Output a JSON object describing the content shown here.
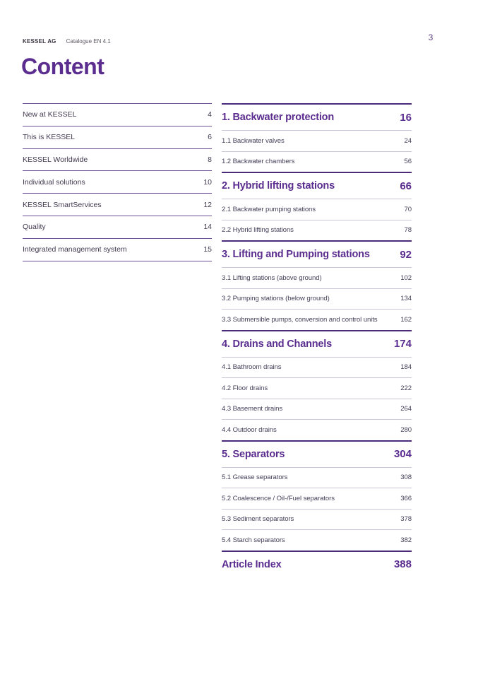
{
  "header": {
    "brand": "KESSEL AG",
    "catalogue": "Catalogue EN 4.1",
    "page_number": "3"
  },
  "title": "Content",
  "colors": {
    "brand_purple": "#5b2d8f",
    "heading_rule": "#4c2a7a",
    "left_rule": "#6f4f96",
    "light_rule": "#ccc5d8",
    "body_text": "#46405a"
  },
  "left_column": {
    "items": [
      {
        "label": "New at KESSEL",
        "page": "4"
      },
      {
        "label": "This is KESSEL",
        "page": "6"
      },
      {
        "label": "KESSEL Worldwide",
        "page": "8"
      },
      {
        "label": "Individual solutions",
        "page": "10"
      },
      {
        "label": "KESSEL SmartServices",
        "page": "12"
      },
      {
        "label": "Quality",
        "page": "14"
      },
      {
        "label": "Integrated management system",
        "page": "15"
      }
    ]
  },
  "right_column": {
    "sections": [
      {
        "title": "1. Backwater protection",
        "page": "16",
        "items": [
          {
            "label": "1.1 Backwater valves",
            "page": "24"
          },
          {
            "label": "1.2 Backwater chambers",
            "page": "56"
          }
        ]
      },
      {
        "title": "2. Hybrid lifting stations",
        "page": "66",
        "items": [
          {
            "label": "2.1 Backwater pumping stations",
            "page": "70"
          },
          {
            "label": "2.2 Hybrid lifting stations",
            "page": "78"
          }
        ]
      },
      {
        "title": "3. Lifting and Pumping stations",
        "page": "92",
        "items": [
          {
            "label": "3.1 Lifting stations (above ground)",
            "page": "102"
          },
          {
            "label": "3.2 Pumping stations (below ground)",
            "page": "134"
          },
          {
            "label": "3.3 Submersible pumps, conversion and control units",
            "page": "162"
          }
        ]
      },
      {
        "title": "4. Drains and Channels",
        "page": "174",
        "items": [
          {
            "label": "4.1 Bathroom drains",
            "page": "184"
          },
          {
            "label": "4.2 Floor drains",
            "page": "222"
          },
          {
            "label": "4.3 Basement drains",
            "page": "264"
          },
          {
            "label": "4.4 Outdoor drains",
            "page": "280"
          }
        ]
      },
      {
        "title": "5. Separators",
        "page": "304",
        "items": [
          {
            "label": "5.1 Grease separators",
            "page": "308"
          },
          {
            "label": "5.2 Coalescence / Oil-/Fuel separators",
            "page": "366"
          },
          {
            "label": "5.3 Sediment separators",
            "page": "378"
          },
          {
            "label": "5.4 Starch separators",
            "page": "382"
          }
        ]
      },
      {
        "title": "Article Index",
        "page": "388",
        "items": []
      }
    ]
  }
}
